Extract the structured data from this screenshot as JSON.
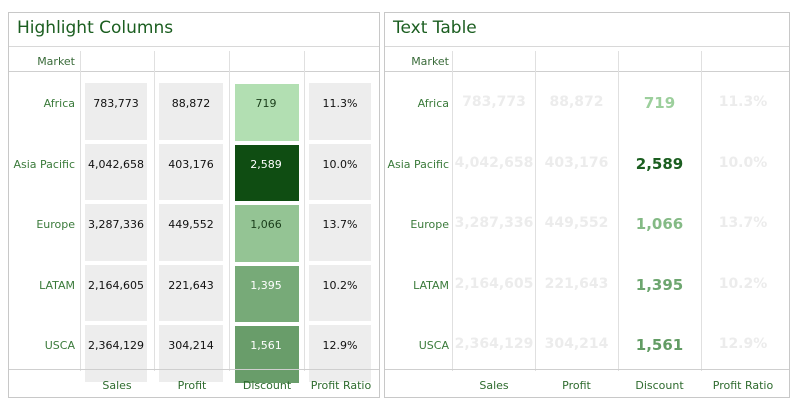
{
  "left_title": "Highlight Columns",
  "right_title": "Text Table",
  "market_header": "Market",
  "colors": {
    "title": "#1b5e20",
    "discount_scale_low": "#b2dfb2",
    "discount_scale_high": "#0f4d12",
    "faded_text": "#ececec"
  },
  "chart_data": [
    {
      "type": "table",
      "title": "Highlight Columns",
      "row_header": "Market",
      "columns": [
        "Sales",
        "Profit",
        "Discount",
        "Profit Ratio"
      ],
      "rows": [
        {
          "market": "Africa",
          "sales": "783,773",
          "profit": "88,872",
          "discount": "719",
          "profit_ratio": "11.3%",
          "discount_value": 719
        },
        {
          "market": "Asia Pacific",
          "sales": "4,042,658",
          "profit": "403,176",
          "discount": "2,589",
          "profit_ratio": "10.0%",
          "discount_value": 2589
        },
        {
          "market": "Europe",
          "sales": "3,287,336",
          "profit": "449,552",
          "discount": "1,066",
          "profit_ratio": "13.7%",
          "discount_value": 1066
        },
        {
          "market": "LATAM",
          "sales": "2,164,605",
          "profit": "221,643",
          "discount": "1,395",
          "profit_ratio": "10.2%",
          "discount_value": 1395
        },
        {
          "market": "USCA",
          "sales": "2,364,129",
          "profit": "304,214",
          "discount": "1,561",
          "profit_ratio": "12.9%",
          "discount_value": 1561
        }
      ]
    },
    {
      "type": "table",
      "title": "Text Table",
      "row_header": "Market",
      "columns": [
        "Sales",
        "Profit",
        "Discount",
        "Profit Ratio"
      ],
      "rows": [
        {
          "market": "Africa",
          "sales": "783,773",
          "profit": "88,872",
          "discount": "719",
          "profit_ratio": "11.3%",
          "discount_value": 719
        },
        {
          "market": "Asia Pacific",
          "sales": "4,042,658",
          "profit": "403,176",
          "discount": "2,589",
          "profit_ratio": "10.0%",
          "discount_value": 2589
        },
        {
          "market": "Europe",
          "sales": "3,287,336",
          "profit": "449,552",
          "discount": "1,066",
          "profit_ratio": "13.7%",
          "discount_value": 1066
        },
        {
          "market": "LATAM",
          "sales": "2,164,605",
          "profit": "221,643",
          "discount": "1,395",
          "profit_ratio": "10.2%",
          "discount_value": 1395
        },
        {
          "market": "USCA",
          "sales": "2,364,129",
          "profit": "304,214",
          "discount": "1,561",
          "profit_ratio": "12.9%",
          "discount_value": 1561
        }
      ]
    }
  ]
}
